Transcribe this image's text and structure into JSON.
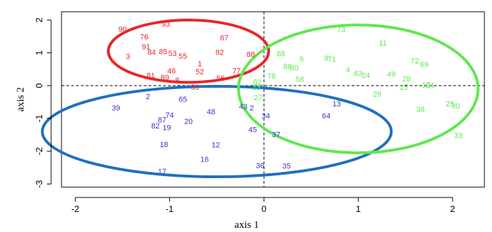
{
  "chart_data": {
    "type": "scatter",
    "title": "",
    "xlabel": "axis 1",
    "ylabel": "axis 2",
    "xlim": [
      -2.2,
      2.2
    ],
    "ylim": [
      -3.3,
      2.2
    ],
    "xticks": [
      -2,
      -1,
      0,
      1,
      2
    ],
    "yticks": [
      2,
      1,
      0,
      -1,
      -2,
      -3
    ],
    "xtick_labels": [
      "-2",
      "-1",
      "0",
      "1",
      "2"
    ],
    "ytick_labels": [
      "2",
      "1",
      "0",
      "-1",
      "-2",
      "-3"
    ],
    "reference_lines": {
      "x": 0,
      "y": 0,
      "style": "dashed"
    },
    "grid": false,
    "series": [
      {
        "color": "#e8262b",
        "points": [
          {
            "label": "93",
            "x": -1.04,
            "y": 1.86
          },
          {
            "label": "90",
            "x": -1.5,
            "y": 1.7
          },
          {
            "label": "76",
            "x": -1.27,
            "y": 1.47
          },
          {
            "label": "67",
            "x": -0.42,
            "y": 1.44
          },
          {
            "label": "91",
            "x": -1.25,
            "y": 1.17
          },
          {
            "label": "84",
            "x": -1.19,
            "y": 1.0
          },
          {
            "label": "85",
            "x": -1.07,
            "y": 1.02
          },
          {
            "label": "53",
            "x": -0.97,
            "y": 0.97
          },
          {
            "label": "55",
            "x": -0.86,
            "y": 0.88
          },
          {
            "label": "92",
            "x": -0.47,
            "y": 1.0
          },
          {
            "label": "88",
            "x": -0.14,
            "y": 0.94
          },
          {
            "label": "3",
            "x": -1.44,
            "y": 0.87
          },
          {
            "label": "1",
            "x": -0.68,
            "y": 0.65
          },
          {
            "label": "46",
            "x": -0.98,
            "y": 0.43
          },
          {
            "label": "52",
            "x": -0.68,
            "y": 0.41
          },
          {
            "label": "77",
            "x": -0.29,
            "y": 0.43
          },
          {
            "label": "81",
            "x": -1.2,
            "y": 0.29
          },
          {
            "label": "89",
            "x": -1.05,
            "y": 0.23
          },
          {
            "label": "8",
            "x": -0.92,
            "y": 0.15
          },
          {
            "label": "56",
            "x": -0.46,
            "y": 0.21
          },
          {
            "label": "59",
            "x": -0.73,
            "y": -0.07
          }
        ]
      },
      {
        "color": "#3a35c9",
        "points": [
          {
            "label": "2",
            "x": -1.23,
            "y": -0.35
          },
          {
            "label": "65",
            "x": -0.86,
            "y": -0.43
          },
          {
            "label": "39",
            "x": -1.57,
            "y": -0.7
          },
          {
            "label": "48",
            "x": -0.56,
            "y": -0.81
          },
          {
            "label": "43",
            "x": -0.22,
            "y": -0.65
          },
          {
            "label": "2",
            "x": -0.13,
            "y": -0.7
          },
          {
            "label": "34",
            "x": 0.02,
            "y": -0.94
          },
          {
            "label": "74",
            "x": -1.0,
            "y": -0.92
          },
          {
            "label": "87",
            "x": -1.08,
            "y": -1.06
          },
          {
            "label": "82",
            "x": -1.15,
            "y": -1.24
          },
          {
            "label": "19",
            "x": -1.03,
            "y": -1.3
          },
          {
            "label": "20",
            "x": -0.8,
            "y": -1.11
          },
          {
            "label": "45",
            "x": -0.12,
            "y": -1.36
          },
          {
            "label": "37",
            "x": 0.13,
            "y": -1.51
          },
          {
            "label": "18",
            "x": -1.06,
            "y": -1.81
          },
          {
            "label": "12",
            "x": -0.51,
            "y": -1.82
          },
          {
            "label": "16",
            "x": -0.63,
            "y": -2.27
          },
          {
            "label": "17",
            "x": -1.08,
            "y": -2.63
          },
          {
            "label": "36",
            "x": -0.04,
            "y": -2.45
          },
          {
            "label": "35",
            "x": 0.24,
            "y": -2.47
          },
          {
            "label": "13",
            "x": 0.77,
            "y": -0.57
          },
          {
            "label": "64",
            "x": 0.66,
            "y": -0.94
          }
        ]
      },
      {
        "color": "#5ee84f",
        "points": [
          {
            "label": "73",
            "x": 0.82,
            "y": 1.69
          },
          {
            "label": "11",
            "x": 1.26,
            "y": 1.28
          },
          {
            "label": "68",
            "x": 0.18,
            "y": 0.96
          },
          {
            "label": "6",
            "x": 0.4,
            "y": 0.8
          },
          {
            "label": "9",
            "x": 0.66,
            "y": 0.82
          },
          {
            "label": "71",
            "x": 0.72,
            "y": 0.79
          },
          {
            "label": "72",
            "x": 1.6,
            "y": 0.73
          },
          {
            "label": "69",
            "x": 1.7,
            "y": 0.63
          },
          {
            "label": "86",
            "x": 0.25,
            "y": 0.57
          },
          {
            "label": "80",
            "x": 0.32,
            "y": 0.52
          },
          {
            "label": "4",
            "x": 0.89,
            "y": 0.46
          },
          {
            "label": "63",
            "x": 1.0,
            "y": 0.36
          },
          {
            "label": "24",
            "x": 1.08,
            "y": 0.29
          },
          {
            "label": "49",
            "x": 1.35,
            "y": 0.33
          },
          {
            "label": "28",
            "x": 1.51,
            "y": 0.19
          },
          {
            "label": "58",
            "x": 0.38,
            "y": 0.18
          },
          {
            "label": "78",
            "x": 0.08,
            "y": 0.27
          },
          {
            "label": "62",
            "x": -0.07,
            "y": 0.09
          },
          {
            "label": "10",
            "x": 1.72,
            "y": 0.01
          },
          {
            "label": "54",
            "x": 1.76,
            "y": -0.01
          },
          {
            "label": "15",
            "x": 1.48,
            "y": -0.07
          },
          {
            "label": "23",
            "x": -0.08,
            "y": -0.06
          },
          {
            "label": "29",
            "x": 1.2,
            "y": -0.28
          },
          {
            "label": "27",
            "x": -0.06,
            "y": -0.38
          },
          {
            "label": "38",
            "x": 1.66,
            "y": -0.74
          },
          {
            "label": "25",
            "x": 1.97,
            "y": -0.57
          },
          {
            "label": "30",
            "x": 2.03,
            "y": -0.63
          },
          {
            "label": "33",
            "x": 2.06,
            "y": -1.54
          }
        ]
      }
    ],
    "ellipses": [
      {
        "color": "#e8262b",
        "cx": -0.8,
        "cy": 1.05,
        "rx": 0.85,
        "ry": 0.95
      },
      {
        "color": "#1f6fc0",
        "cx": -0.5,
        "cy": -1.4,
        "rx": 1.85,
        "ry": 1.38
      },
      {
        "color": "#5ee84f",
        "cx": 1.0,
        "cy": -0.1,
        "rx": 1.27,
        "ry": 1.95
      }
    ]
  }
}
